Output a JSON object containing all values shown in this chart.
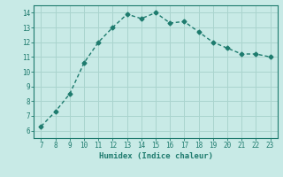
{
  "x": [
    7,
    8,
    9,
    10,
    11,
    12,
    13,
    14,
    15,
    16,
    17,
    18,
    19,
    20,
    21,
    22,
    23
  ],
  "y": [
    6.3,
    7.3,
    8.5,
    10.6,
    12.0,
    13.0,
    13.9,
    13.6,
    14.0,
    13.3,
    13.4,
    12.7,
    12.0,
    11.6,
    11.2,
    11.2,
    11.0
  ],
  "line_color": "#1e7b6e",
  "bg_color": "#c8eae6",
  "grid_color": "#aad4ce",
  "xlabel": "Humidex (Indice chaleur)",
  "xlim": [
    6.5,
    23.5
  ],
  "ylim": [
    5.5,
    14.5
  ],
  "xticks": [
    7,
    8,
    9,
    10,
    11,
    12,
    13,
    14,
    15,
    16,
    17,
    18,
    19,
    20,
    21,
    22,
    23
  ],
  "yticks": [
    6,
    7,
    8,
    9,
    10,
    11,
    12,
    13,
    14
  ],
  "markersize": 2.5,
  "linewidth": 1.0
}
